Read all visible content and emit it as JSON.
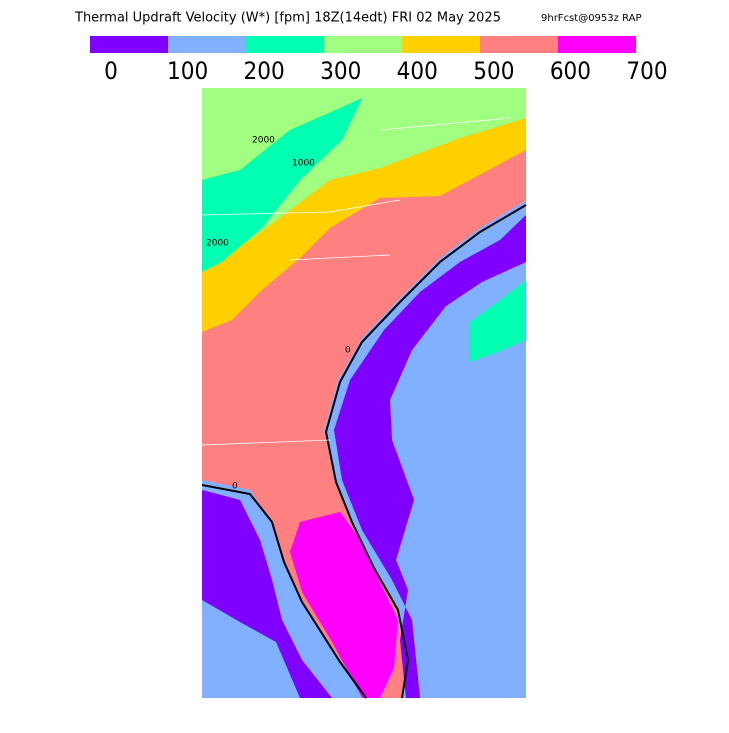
{
  "header": {
    "title": "Thermal Updraft Velocity (W*) [fpm] 18Z(14edt) FRI 02 May 2025",
    "model_info": "9hrFcst@0953z RAP"
  },
  "colorbar": {
    "ticks": [
      0,
      100,
      200,
      300,
      400,
      500,
      600,
      700
    ],
    "colors": [
      "#8000ff",
      "#80b0ff",
      "#00ffb0",
      "#a0ff80",
      "#ffd000",
      "#ff8080",
      "#ff00ff"
    ]
  },
  "map": {
    "contour_labels": [
      "2000",
      "1000",
      "2000",
      "0",
      "0"
    ]
  }
}
